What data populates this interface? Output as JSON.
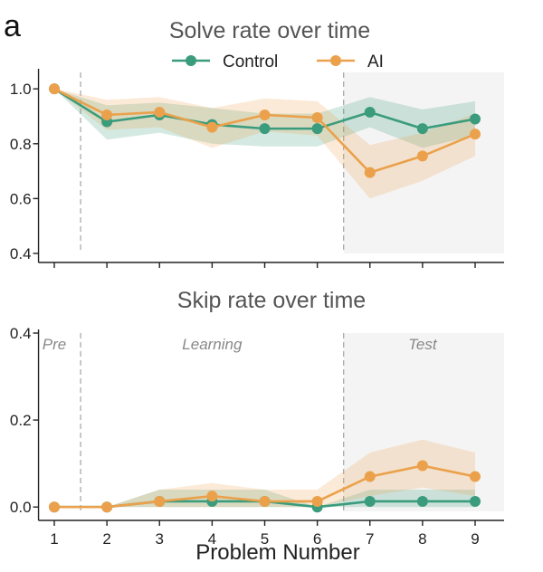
{
  "panel_label": "a",
  "colors": {
    "control": "#3a9c7c",
    "ai": "#eba14b",
    "test_region": "#f4f4f4",
    "divider": "#aaaaaa"
  },
  "chart_data": [
    {
      "type": "line",
      "title": "Solve rate over time",
      "xlabel": "",
      "ylabel": "",
      "x": [
        1,
        2,
        3,
        4,
        5,
        6,
        7,
        8,
        9
      ],
      "xlim": [
        0.7,
        9.55
      ],
      "ylim": [
        0.4,
        1.06
      ],
      "yticks": [
        0.4,
        0.6,
        0.8,
        1.0
      ],
      "ytick_labels": [
        "0.4",
        "0.6",
        "0.8",
        "1.0"
      ],
      "xticks": [
        1,
        2,
        3,
        4,
        5,
        6,
        7,
        8,
        9
      ],
      "legend": {
        "placement": "top-center",
        "entries": [
          "Control",
          "AI"
        ]
      },
      "phase_dividers": [
        1.5,
        6.5
      ],
      "test_region": [
        6.5,
        9.55
      ],
      "grid": false,
      "series": [
        {
          "name": "Control",
          "color": "#3a9c7c",
          "values": [
            1.0,
            0.88,
            0.905,
            0.87,
            0.855,
            0.855,
            0.915,
            0.855,
            0.89
          ],
          "ci_low": [
            1.0,
            0.815,
            0.84,
            0.8,
            0.79,
            0.79,
            0.86,
            0.785,
            0.83
          ],
          "ci_high": [
            1.0,
            0.94,
            0.95,
            0.93,
            0.91,
            0.91,
            0.97,
            0.925,
            0.955
          ]
        },
        {
          "name": "AI",
          "color": "#eba14b",
          "values": [
            1.0,
            0.905,
            0.915,
            0.86,
            0.905,
            0.895,
            0.695,
            0.755,
            0.835
          ],
          "ci_low": [
            1.0,
            0.85,
            0.86,
            0.785,
            0.845,
            0.83,
            0.6,
            0.665,
            0.755
          ],
          "ci_high": [
            1.0,
            0.96,
            0.97,
            0.93,
            0.965,
            0.955,
            0.795,
            0.84,
            0.91
          ]
        }
      ]
    },
    {
      "type": "line",
      "title": "Skip rate over time",
      "xlabel": "Problem Number",
      "ylabel": "",
      "x": [
        1,
        2,
        3,
        4,
        5,
        6,
        7,
        8,
        9
      ],
      "xlim": [
        0.7,
        9.55
      ],
      "ylim": [
        -0.01,
        0.4
      ],
      "yticks": [
        0.0,
        0.2,
        0.4
      ],
      "ytick_labels": [
        "0.0",
        "0.2",
        "0.4"
      ],
      "xticks": [
        1,
        2,
        3,
        4,
        5,
        6,
        7,
        8,
        9
      ],
      "xtick_labels": [
        "1",
        "2",
        "3",
        "4",
        "5",
        "6",
        "7",
        "8",
        "9"
      ],
      "phase_labels": [
        {
          "text": "Pre",
          "x": 1.0
        },
        {
          "text": "Learning",
          "x": 4.0
        },
        {
          "text": "Test",
          "x": 8.0
        }
      ],
      "phase_dividers": [
        1.5,
        6.5
      ],
      "test_region": [
        6.5,
        9.55
      ],
      "grid": false,
      "series": [
        {
          "name": "Control",
          "color": "#3a9c7c",
          "values": [
            0.0,
            0.0,
            0.013,
            0.013,
            0.013,
            0.0,
            0.013,
            0.013,
            0.013
          ],
          "ci_low": [
            0.0,
            0.0,
            0.0,
            0.0,
            0.0,
            0.0,
            0.0,
            0.0,
            0.0
          ],
          "ci_high": [
            0.0,
            0.0,
            0.04,
            0.04,
            0.04,
            0.0,
            0.04,
            0.04,
            0.04
          ]
        },
        {
          "name": "AI",
          "color": "#eba14b",
          "values": [
            0.0,
            0.0,
            0.013,
            0.025,
            0.013,
            0.013,
            0.07,
            0.095,
            0.07
          ],
          "ci_low": [
            0.0,
            0.0,
            0.0,
            0.0,
            0.0,
            0.0,
            0.025,
            0.045,
            0.025
          ],
          "ci_high": [
            0.0,
            0.0,
            0.04,
            0.055,
            0.04,
            0.04,
            0.125,
            0.155,
            0.125
          ]
        }
      ]
    }
  ]
}
